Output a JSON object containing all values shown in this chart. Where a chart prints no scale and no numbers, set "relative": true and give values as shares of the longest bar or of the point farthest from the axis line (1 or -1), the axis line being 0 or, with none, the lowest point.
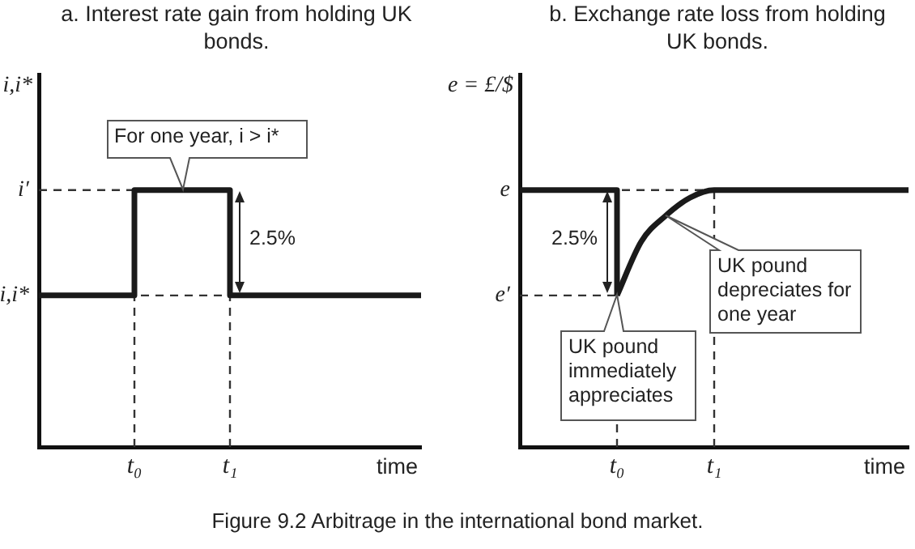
{
  "chart_data": [
    {
      "type": "step",
      "title": "a. Interest rate gain from holding UK bonds.",
      "ylabel": "i,i*",
      "xlabel": "time",
      "relative": true,
      "categories": [
        null,
        "t₀",
        "t₁",
        null,
        null
      ],
      "marker": "none",
      "line_style": "solid",
      "series": [
        {
          "color": "#1a1a1a",
          "values": [
            0.59,
            1,
            0.59,
            0.59,
            0.59
          ]
        }
      ],
      "ref_lines": [
        {
          "axis": "y",
          "value": 1,
          "label": "i′",
          "color": "#333333",
          "line_style": "dashed"
        },
        {
          "axis": "y",
          "value": 0.59,
          "label": "i,i*",
          "color": "#333333",
          "line_style": "dashed"
        },
        {
          "axis": "x",
          "value": "t₀",
          "color": "#333333",
          "line_style": "dashed"
        },
        {
          "axis": "x",
          "value": "t₁",
          "color": "#333333",
          "line_style": "dashed"
        }
      ],
      "annotations": [
        "For one year, i > i*",
        "2.5%",
        "Figure 9.2 Arbitrage in the international bond market."
      ]
    },
    {
      "type": "line",
      "title": "b. Exchange rate loss from holding UK bonds.",
      "ylabel": "e = £/$",
      "xlabel": "time",
      "relative": true,
      "categories": [
        null,
        null,
        null,
        null,
        "t₀",
        null,
        null,
        null,
        "t₁",
        null,
        null,
        null,
        null,
        null,
        null,
        null,
        null
      ],
      "marker": "none",
      "line_style": "solid",
      "series": [
        {
          "type": "step",
          "color": "#1a1a1a",
          "values": [
            1,
            1,
            1,
            1,
            0.59,
            null,
            null,
            null,
            null,
            null,
            null,
            null,
            null,
            null,
            null,
            null,
            null
          ]
        },
        {
          "color": "#1a1a1a",
          "values": [
            null,
            null,
            null,
            null,
            0.59,
            0.8,
            0.9,
            0.97,
            1,
            1,
            1,
            1,
            1,
            1,
            1,
            1,
            1
          ]
        }
      ],
      "ref_lines": [
        {
          "axis": "y",
          "value": 1,
          "label": "e",
          "color": "#333333",
          "line_style": "dashed"
        },
        {
          "axis": "y",
          "value": 0.59,
          "label": "e′",
          "color": "#333333",
          "line_style": "dashed"
        },
        {
          "axis": "x",
          "value": "t₀",
          "color": "#333333",
          "line_style": "dashed"
        },
        {
          "axis": "x",
          "value": "t₁",
          "color": "#333333",
          "line_style": "dashed"
        }
      ],
      "annotations": [
        "2.5%",
        "UK pound depreciates for one year",
        {
          "text": "UK pound immediately appreciates",
          "x": "t₀",
          "y": 0.59
        }
      ]
    }
  ]
}
